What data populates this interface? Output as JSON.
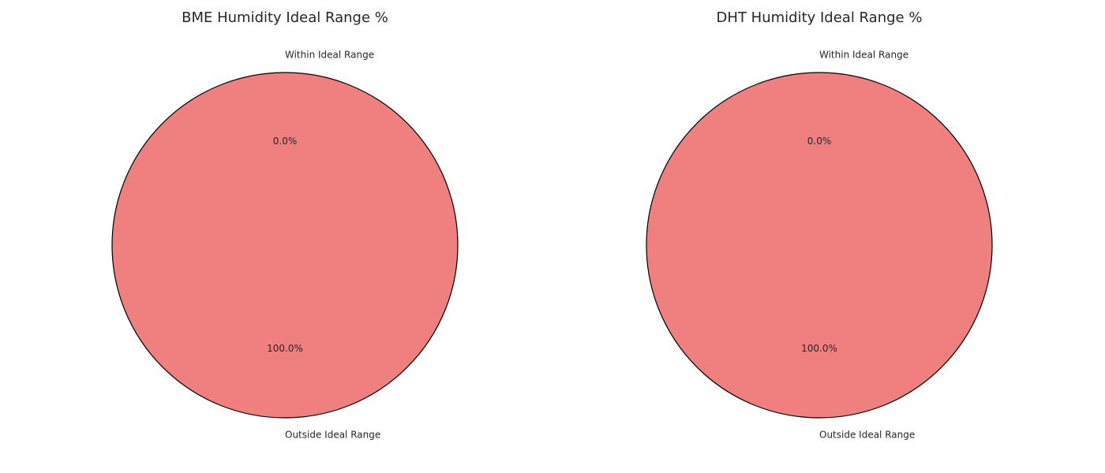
{
  "chart_data": [
    {
      "type": "pie",
      "title": "BME Humidity Ideal Range %",
      "categories": [
        "Within Ideal Range",
        "Outside Ideal Range"
      ],
      "values": [
        0.0,
        100.0
      ],
      "value_labels": [
        "0.0%",
        "100.0%"
      ],
      "colors": [
        "#90ee90",
        "#f08080"
      ],
      "edge_color": "#000000",
      "start_angle_deg": 90,
      "grid": false,
      "legend": "none"
    },
    {
      "type": "pie",
      "title": "DHT Humidity Ideal Range %",
      "categories": [
        "Within Ideal Range",
        "Outside Ideal Range"
      ],
      "values": [
        0.0,
        100.0
      ],
      "value_labels": [
        "0.0%",
        "100.0%"
      ],
      "colors": [
        "#90ee90",
        "#f08080"
      ],
      "edge_color": "#000000",
      "start_angle_deg": 90,
      "grid": false,
      "legend": "none"
    }
  ]
}
